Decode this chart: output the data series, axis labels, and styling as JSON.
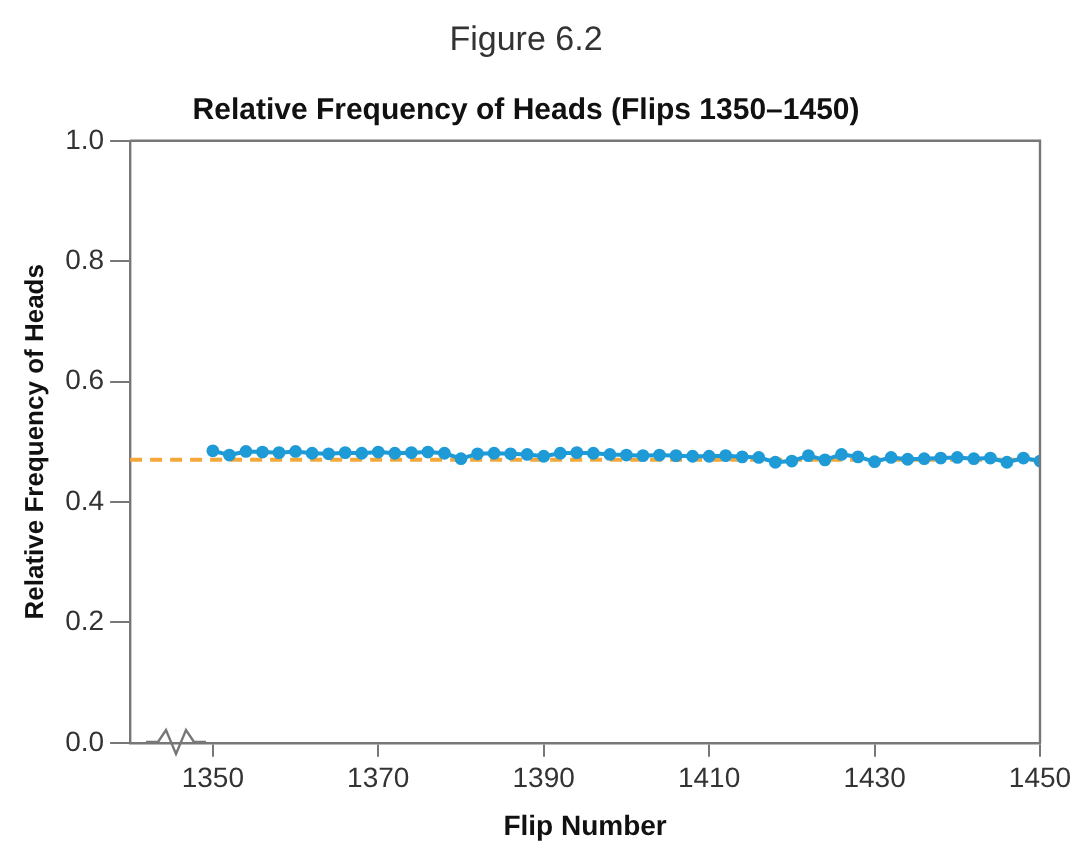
{
  "chart_data": {
    "type": "line",
    "title": "Figure 6.2",
    "subtitle": "Relative Frequency of Heads (Flips 1350–1450)",
    "xlabel": "Flip Number",
    "ylabel": "Relative Frequency of Heads",
    "x": [
      1350,
      1352,
      1354,
      1356,
      1358,
      1360,
      1362,
      1364,
      1366,
      1368,
      1370,
      1372,
      1374,
      1376,
      1378,
      1380,
      1382,
      1384,
      1386,
      1388,
      1390,
      1392,
      1394,
      1396,
      1398,
      1400,
      1402,
      1404,
      1406,
      1408,
      1410,
      1412,
      1414,
      1416,
      1418,
      1420,
      1422,
      1424,
      1426,
      1428,
      1430,
      1432,
      1434,
      1436,
      1438,
      1440,
      1442,
      1444,
      1446,
      1448,
      1450
    ],
    "series": [
      {
        "color": "#1e9bd7",
        "values": [
          0.485,
          0.478,
          0.484,
          0.483,
          0.482,
          0.484,
          0.481,
          0.48,
          0.482,
          0.481,
          0.483,
          0.481,
          0.482,
          0.483,
          0.481,
          0.472,
          0.48,
          0.481,
          0.48,
          0.479,
          0.476,
          0.481,
          0.482,
          0.481,
          0.479,
          0.478,
          0.477,
          0.478,
          0.477,
          0.476,
          0.476,
          0.477,
          0.475,
          0.474,
          0.466,
          0.468,
          0.477,
          0.47,
          0.479,
          0.475,
          0.467,
          0.474,
          0.471,
          0.472,
          0.473,
          0.474,
          0.472,
          0.473,
          0.466,
          0.473,
          0.468
        ]
      }
    ],
    "xlim": [
      1340,
      1450
    ],
    "xticks": [
      1350,
      1370,
      1390,
      1410,
      1430,
      1450
    ],
    "ylim": [
      0,
      1
    ],
    "yticks": [
      {
        "value": 0,
        "label": "0.0"
      },
      {
        "value": 0.2,
        "label": "0.2"
      },
      {
        "value": 0.4,
        "label": "0.4"
      },
      {
        "value": 0.6,
        "label": "0.6"
      },
      {
        "value": 0.8,
        "label": "0.8"
      },
      {
        "value": 1,
        "label": "1.0"
      }
    ],
    "ref_lines": [
      {
        "axis": "y",
        "value": 0.47,
        "color": "#f4a83a",
        "line_style": "dashed"
      }
    ],
    "grid": false,
    "legend": false,
    "marker": "circle",
    "line_style": "solid"
  }
}
